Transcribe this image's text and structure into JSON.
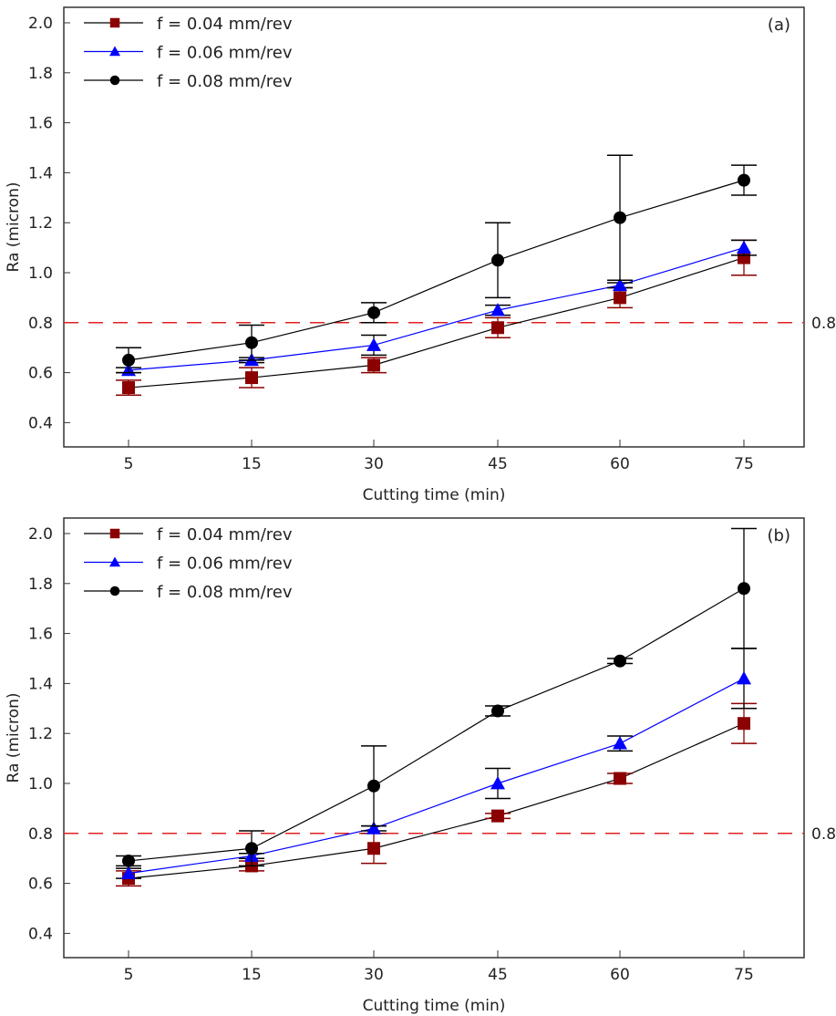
{
  "chart_data": [
    {
      "type": "line",
      "panel_label": "(a)",
      "xlabel": "Cutting time (min)",
      "ylabel": "Ra (micron)",
      "categories": [
        "5",
        "15",
        "30",
        "45",
        "60",
        "75"
      ],
      "ylim": [
        0.3,
        2.06
      ],
      "yticks": [
        "0.4",
        "0.6",
        "0.8",
        "1.0",
        "1.2",
        "1.4",
        "1.6",
        "1.8",
        "2.0"
      ],
      "grid": false,
      "legend_position": "top-left",
      "reference_line": {
        "value": 0.8,
        "label": "0.8",
        "color": "#e02020",
        "style": "dashed"
      },
      "series": [
        {
          "name": "f = 0.04 mm/rev",
          "marker": "square",
          "color": "#8b0000",
          "line_color": "#000000",
          "values": [
            0.54,
            0.58,
            0.63,
            0.78,
            0.9,
            1.06
          ],
          "errors": [
            0.03,
            0.04,
            0.03,
            0.04,
            0.04,
            0.07
          ]
        },
        {
          "name": "f = 0.06 mm/rev",
          "marker": "triangle",
          "color": "#0000ff",
          "line_color": "#0000ff",
          "values": [
            0.61,
            0.65,
            0.71,
            0.85,
            0.95,
            1.1
          ],
          "errors": [
            0.01,
            0.01,
            0.04,
            0.02,
            0.01,
            0.03
          ]
        },
        {
          "name": "f = 0.08 mm/rev",
          "marker": "circle",
          "color": "#000000",
          "line_color": "#000000",
          "values": [
            0.65,
            0.72,
            0.84,
            1.05,
            1.22,
            1.37
          ],
          "errors": [
            0.05,
            0.07,
            0.04,
            0.15,
            0.25,
            0.06
          ]
        }
      ]
    },
    {
      "type": "line",
      "panel_label": "(b)",
      "xlabel": "Cutting time (min)",
      "ylabel": "Ra (micron)",
      "categories": [
        "5",
        "15",
        "30",
        "45",
        "60",
        "75"
      ],
      "ylim": [
        0.3,
        2.06
      ],
      "yticks": [
        "0.4",
        "0.6",
        "0.8",
        "1.0",
        "1.2",
        "1.4",
        "1.6",
        "1.8",
        "2.0"
      ],
      "grid": false,
      "legend_position": "top-left",
      "reference_line": {
        "value": 0.8,
        "label": "0.8",
        "color": "#e02020",
        "style": "dashed"
      },
      "series": [
        {
          "name": "f = 0.04 mm/rev",
          "marker": "square",
          "color": "#8b0000",
          "line_color": "#000000",
          "values": [
            0.62,
            0.67,
            0.74,
            0.87,
            1.02,
            1.24
          ],
          "errors": [
            0.03,
            0.02,
            0.06,
            0.01,
            0.02,
            0.08
          ]
        },
        {
          "name": "f = 0.06 mm/rev",
          "marker": "triangle",
          "color": "#0000ff",
          "line_color": "#0000ff",
          "values": [
            0.64,
            0.71,
            0.82,
            1.0,
            1.16,
            1.42
          ],
          "errors": [
            0.02,
            0.01,
            0.01,
            0.06,
            0.03,
            0.12
          ]
        },
        {
          "name": "f = 0.08 mm/rev",
          "marker": "circle",
          "color": "#000000",
          "line_color": "#000000",
          "values": [
            0.69,
            0.74,
            0.99,
            1.29,
            1.49,
            1.78
          ],
          "errors": [
            0.02,
            0.07,
            0.16,
            0.02,
            0.01,
            0.24
          ]
        }
      ]
    }
  ]
}
